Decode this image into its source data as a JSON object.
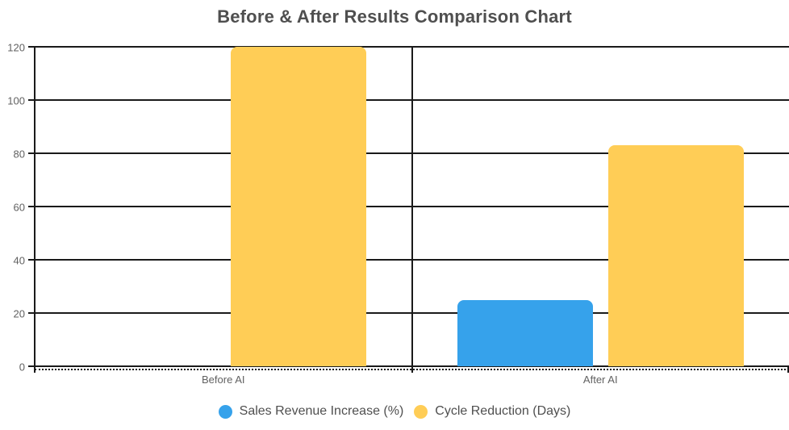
{
  "chart_data": {
    "type": "bar",
    "title": "Before & After Results Comparison Chart",
    "categories": [
      "Before AI",
      "After AI"
    ],
    "series": [
      {
        "name": "Sales Revenue Increase (%)",
        "color": "#36A2EB",
        "values": [
          0,
          25
        ]
      },
      {
        "name": "Cycle Reduction (Days)",
        "color": "#FFCD56",
        "values": [
          120,
          83
        ]
      }
    ],
    "xlabel": "",
    "ylabel": "",
    "ylim": [
      0,
      120
    ],
    "yticks": [
      0,
      20,
      40,
      60,
      80,
      100,
      120
    ],
    "grid": true,
    "legend_position": "bottom",
    "colors": {
      "grid": "#1a1a1a",
      "axis_text": "#616161",
      "title_text": "#4f4f4f",
      "legend_text": "#4f4f4f",
      "background": "#ffffff"
    }
  }
}
